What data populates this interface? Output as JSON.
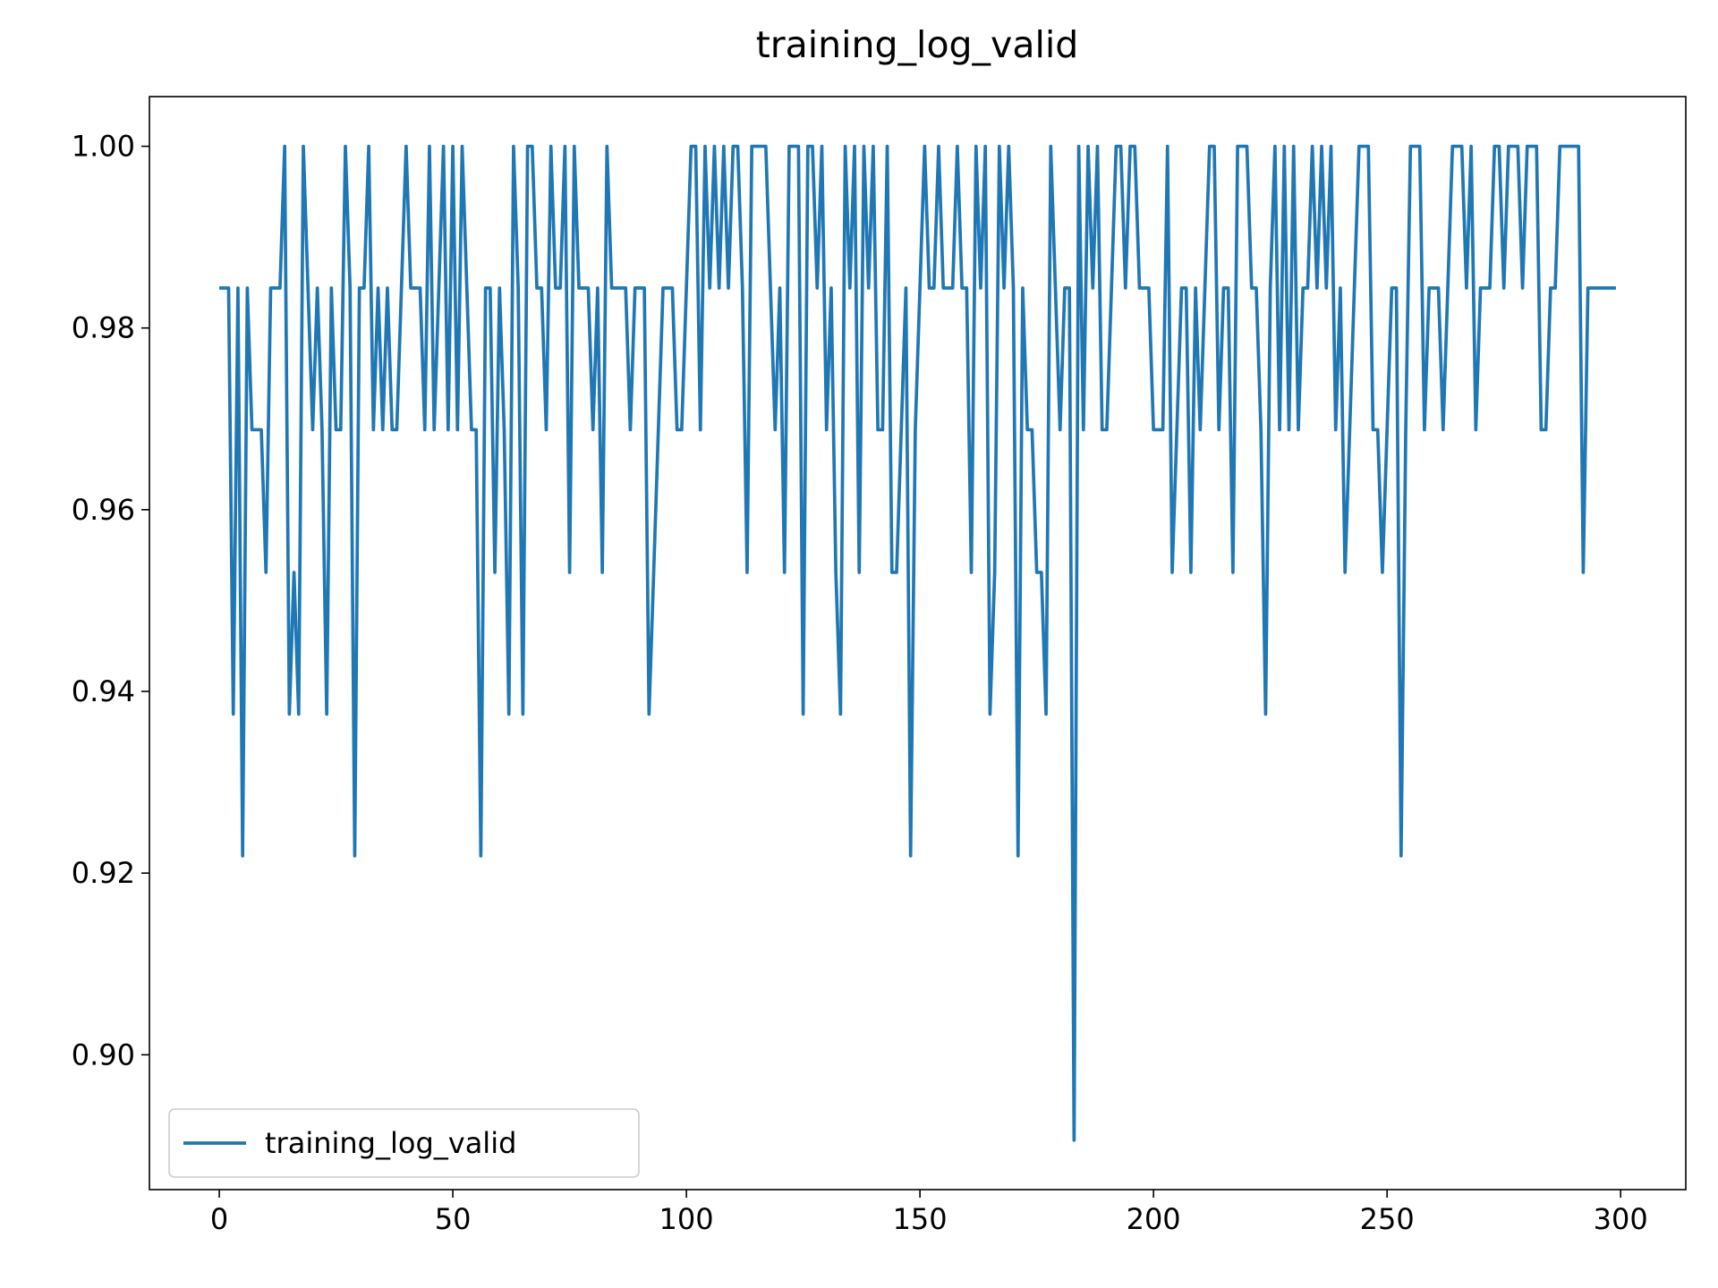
{
  "chart_data": {
    "type": "line",
    "title": "training_log_valid",
    "x": [
      0,
      1,
      2,
      3,
      4,
      5,
      6,
      7,
      8,
      9,
      10,
      11,
      12,
      13,
      14,
      15,
      16,
      17,
      18,
      19,
      20,
      21,
      22,
      23,
      24,
      25,
      26,
      27,
      28,
      29,
      30,
      31,
      32,
      33,
      34,
      35,
      36,
      37,
      38,
      39,
      40,
      41,
      42,
      43,
      44,
      45,
      46,
      47,
      48,
      49,
      50,
      51,
      52,
      53,
      54,
      55,
      56,
      57,
      58,
      59,
      60,
      61,
      62,
      63,
      64,
      65,
      66,
      67,
      68,
      69,
      70,
      71,
      72,
      73,
      74,
      75,
      76,
      77,
      78,
      79,
      80,
      81,
      82,
      83,
      84,
      85,
      86,
      87,
      88,
      89,
      90,
      91,
      92,
      93,
      94,
      95,
      96,
      97,
      98,
      99,
      100,
      101,
      102,
      103,
      104,
      105,
      106,
      107,
      108,
      109,
      110,
      111,
      112,
      113,
      114,
      115,
      116,
      117,
      118,
      119,
      120,
      121,
      122,
      123,
      124,
      125,
      126,
      127,
      128,
      129,
      130,
      131,
      132,
      133,
      134,
      135,
      136,
      137,
      138,
      139,
      140,
      141,
      142,
      143,
      144,
      145,
      146,
      147,
      148,
      149,
      150,
      151,
      152,
      153,
      154,
      155,
      156,
      157,
      158,
      159,
      160,
      161,
      162,
      163,
      164,
      165,
      166,
      167,
      168,
      169,
      170,
      171,
      172,
      173,
      174,
      175,
      176,
      177,
      178,
      179,
      180,
      181,
      182,
      183,
      184,
      185,
      186,
      187,
      188,
      189,
      190,
      191,
      192,
      193,
      194,
      195,
      196,
      197,
      198,
      199,
      200,
      201,
      202,
      203,
      204,
      205,
      206,
      207,
      208,
      209,
      210,
      211,
      212,
      213,
      214,
      215,
      216,
      217,
      218,
      219,
      220,
      221,
      222,
      223,
      224,
      225,
      226,
      227,
      228,
      229,
      230,
      231,
      232,
      233,
      234,
      235,
      236,
      237,
      238,
      239,
      240,
      241,
      242,
      243,
      244,
      245,
      246,
      247,
      248,
      249,
      250,
      251,
      252,
      253,
      254,
      255,
      256,
      257,
      258,
      259,
      260,
      261,
      262,
      263,
      264,
      265,
      266,
      267,
      268,
      269,
      270,
      271,
      272,
      273,
      274,
      275,
      276,
      277,
      278,
      279,
      280,
      281,
      282,
      283,
      284,
      285,
      286,
      287,
      288,
      289,
      290,
      291,
      292,
      293,
      294,
      295,
      296,
      297,
      298,
      299
    ],
    "series": [
      {
        "name": "training_log_valid",
        "color": "#1f77b4",
        "values": [
          0.9844,
          0.9844,
          0.9844,
          0.9375,
          0.9844,
          0.9219,
          0.9844,
          0.9688,
          0.9688,
          0.9688,
          0.9531,
          0.9844,
          0.9844,
          0.9844,
          1.0,
          0.9375,
          0.9531,
          0.9375,
          1.0,
          0.9844,
          0.9688,
          0.9844,
          0.9688,
          0.9375,
          0.9844,
          0.9688,
          0.9688,
          1.0,
          0.9844,
          0.9219,
          0.9844,
          0.9844,
          1.0,
          0.9688,
          0.9844,
          0.9688,
          0.9844,
          0.9688,
          0.9688,
          0.9844,
          1.0,
          0.9844,
          0.9844,
          0.9844,
          0.9688,
          1.0,
          0.9688,
          0.9844,
          1.0,
          0.9688,
          1.0,
          0.9688,
          1.0,
          0.9844,
          0.9688,
          0.9688,
          0.9219,
          0.9844,
          0.9844,
          0.9531,
          0.9844,
          0.9688,
          0.9375,
          1.0,
          0.9844,
          0.9375,
          1.0,
          1.0,
          0.9844,
          0.9844,
          0.9688,
          1.0,
          0.9844,
          0.9844,
          1.0,
          0.9531,
          1.0,
          0.9844,
          0.9844,
          0.9844,
          0.9688,
          0.9844,
          0.9531,
          1.0,
          0.9844,
          0.9844,
          0.9844,
          0.9844,
          0.9688,
          0.9844,
          0.9844,
          0.9844,
          0.9375,
          0.9531,
          0.9688,
          0.9844,
          0.9844,
          0.9844,
          0.9688,
          0.9688,
          0.9844,
          1.0,
          1.0,
          0.9688,
          1.0,
          0.9844,
          1.0,
          0.9844,
          1.0,
          0.9844,
          1.0,
          1.0,
          0.9844,
          0.9531,
          1.0,
          1.0,
          1.0,
          1.0,
          0.9844,
          0.9688,
          0.9844,
          0.9531,
          1.0,
          1.0,
          1.0,
          0.9375,
          1.0,
          1.0,
          0.9844,
          1.0,
          0.9688,
          0.9844,
          0.9531,
          0.9375,
          1.0,
          0.9844,
          1.0,
          0.9531,
          1.0,
          0.9844,
          1.0,
          0.9688,
          0.9688,
          1.0,
          0.9531,
          0.9531,
          0.9688,
          0.9844,
          0.9219,
          0.9688,
          0.9844,
          1.0,
          0.9844,
          0.9844,
          1.0,
          0.9844,
          0.9844,
          0.9844,
          1.0,
          0.9844,
          0.9844,
          0.9531,
          1.0,
          0.9844,
          1.0,
          0.9375,
          0.9531,
          1.0,
          0.9844,
          1.0,
          0.9844,
          0.9219,
          0.9844,
          0.9688,
          0.9688,
          0.9531,
          0.9531,
          0.9375,
          1.0,
          0.9844,
          0.9688,
          0.9844,
          0.9844,
          0.8906,
          1.0,
          0.9688,
          1.0,
          0.9844,
          1.0,
          0.9688,
          0.9688,
          0.9844,
          1.0,
          1.0,
          0.9844,
          1.0,
          1.0,
          0.9844,
          0.9844,
          0.9844,
          0.9688,
          0.9688,
          0.9688,
          1.0,
          0.9531,
          0.9688,
          0.9844,
          0.9844,
          0.9531,
          0.9844,
          0.9688,
          0.9844,
          1.0,
          1.0,
          0.9688,
          0.9844,
          0.9844,
          0.9531,
          1.0,
          1.0,
          1.0,
          0.9844,
          0.9844,
          0.9688,
          0.9375,
          0.9844,
          1.0,
          0.9688,
          1.0,
          0.9688,
          1.0,
          0.9688,
          0.9844,
          0.9844,
          1.0,
          0.9844,
          1.0,
          0.9844,
          1.0,
          0.9688,
          0.9844,
          0.9531,
          0.9688,
          0.9844,
          1.0,
          1.0,
          1.0,
          0.9688,
          0.9688,
          0.9531,
          0.9688,
          0.9844,
          0.9844,
          0.9219,
          0.9688,
          1.0,
          1.0,
          1.0,
          0.9688,
          0.9844,
          0.9844,
          0.9844,
          0.9688,
          0.9844,
          1.0,
          1.0,
          1.0,
          0.9844,
          1.0,
          0.9688,
          0.9844,
          0.9844,
          0.9844,
          1.0,
          1.0,
          0.9844,
          1.0,
          1.0,
          1.0,
          0.9844,
          1.0,
          1.0,
          1.0,
          0.9688,
          0.9688,
          0.9844,
          0.9844,
          1.0,
          1.0,
          1.0,
          1.0,
          1.0,
          0.9531,
          0.9844,
          0.9844,
          0.9844,
          0.9844,
          0.9844,
          0.9844,
          0.9844
        ]
      }
    ],
    "xlim": [
      -14.95,
      313.95
    ],
    "xticks": [
      0,
      50,
      100,
      150,
      200,
      250,
      300
    ],
    "ylim": [
      0.88516,
      1.00547
    ],
    "yticks": [
      {
        "value": 0.9,
        "label": "0.90"
      },
      {
        "value": 0.92,
        "label": "0.92"
      },
      {
        "value": 0.94,
        "label": "0.94"
      },
      {
        "value": 0.96,
        "label": "0.96"
      },
      {
        "value": 0.98,
        "label": "0.98"
      },
      {
        "value": 1.0,
        "label": "1.00"
      }
    ],
    "grid": false,
    "legend": "lower left"
  }
}
